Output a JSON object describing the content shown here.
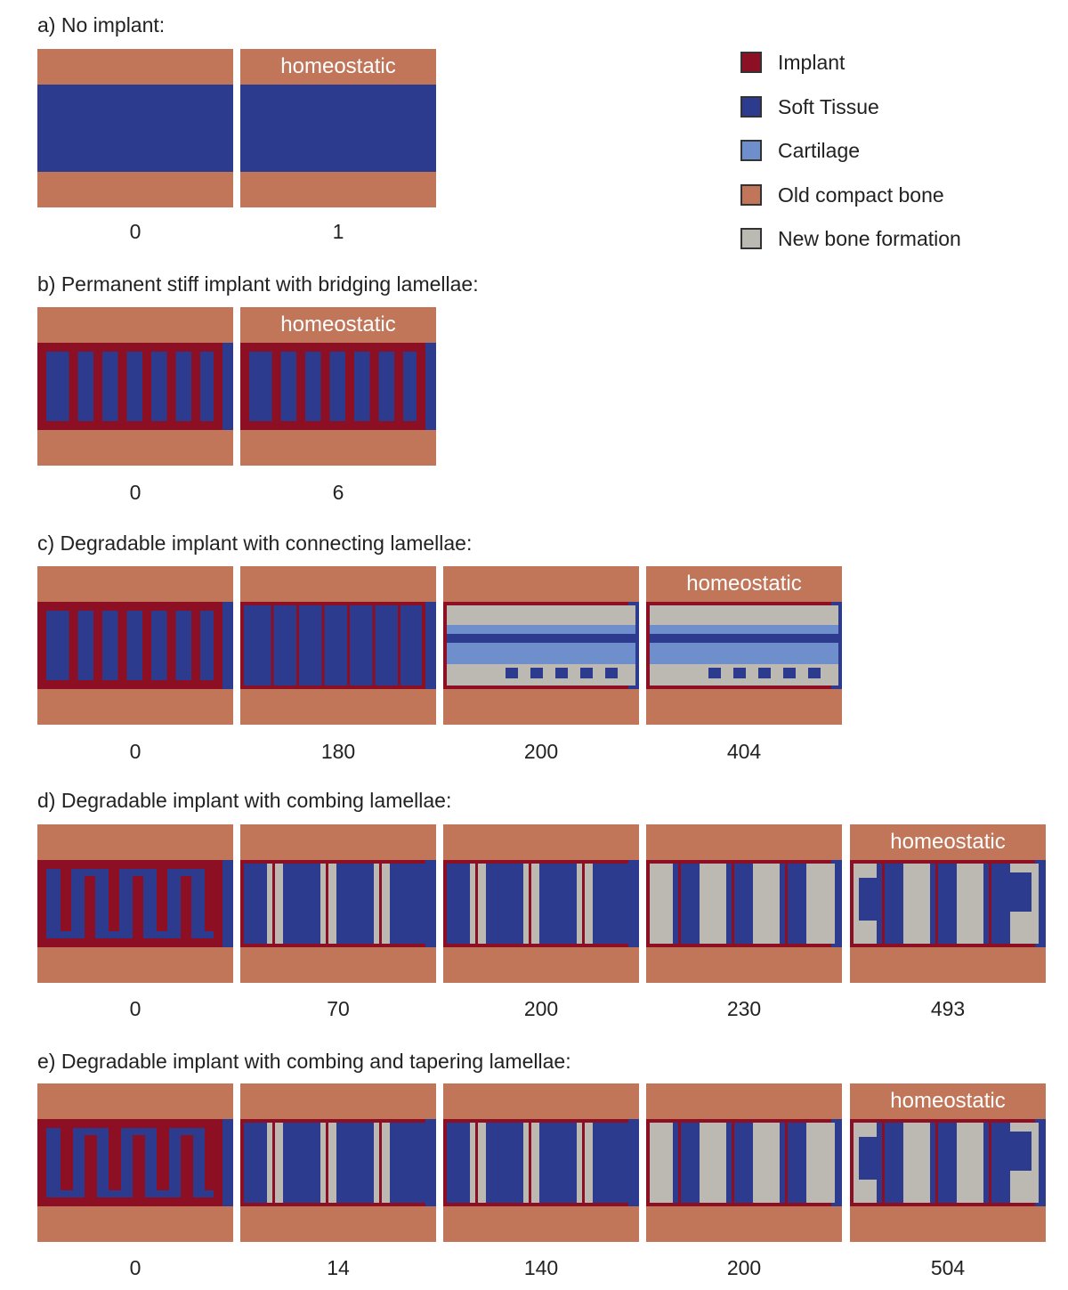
{
  "colors": {
    "implant": "#8c0f23",
    "soft_tissue": "#2d3b8e",
    "cartilage": "#6f8fcc",
    "old_bone": "#c1765a",
    "new_bone": "#bbb9b2"
  },
  "legend": [
    {
      "label": "Implant",
      "color_key": "implant"
    },
    {
      "label": "Soft Tissue",
      "color_key": "soft_tissue"
    },
    {
      "label": "Cartilage",
      "color_key": "cartilage"
    },
    {
      "label": "Old compact bone",
      "color_key": "old_bone"
    },
    {
      "label": "New bone formation",
      "color_key": "new_bone"
    }
  ],
  "homeostatic_label": "homeostatic",
  "rows": [
    {
      "heading": "a) No implant:",
      "panels": [
        {
          "time": "0"
        },
        {
          "time": "1",
          "homeostatic": true
        }
      ]
    },
    {
      "heading": "b) Permanent stiff implant with bridging lamellae:",
      "panels": [
        {
          "time": "0"
        },
        {
          "time": "6",
          "homeostatic": true
        }
      ]
    },
    {
      "heading": "c) Degradable implant with connecting lamellae:",
      "panels": [
        {
          "time": "0"
        },
        {
          "time": "180"
        },
        {
          "time": "200"
        },
        {
          "time": "404",
          "homeostatic": true
        }
      ]
    },
    {
      "heading": "d) Degradable implant with combing lamellae:",
      "panels": [
        {
          "time": "0"
        },
        {
          "time": "70"
        },
        {
          "time": "200"
        },
        {
          "time": "230"
        },
        {
          "time": "493",
          "homeostatic": true
        }
      ]
    },
    {
      "heading": "e) Degradable implant with combing and tapering lamellae:",
      "panels": [
        {
          "time": "0"
        },
        {
          "time": "14"
        },
        {
          "time": "140"
        },
        {
          "time": "200"
        },
        {
          "time": "504",
          "homeostatic": true
        }
      ]
    }
  ]
}
